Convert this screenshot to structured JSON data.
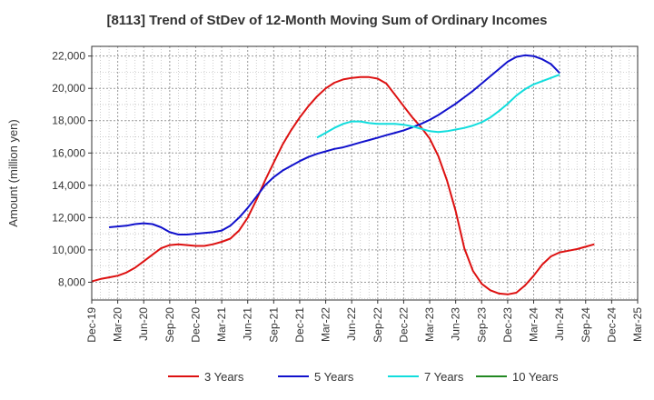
{
  "chart_data": {
    "type": "line",
    "title": "[8113]  Trend of StDev of 12-Month Moving Sum of Ordinary Incomes",
    "xlabel": "",
    "ylabel": "Amount (million yen)",
    "ylim": [
      6900,
      22600
    ],
    "yticks": [
      8000,
      10000,
      12000,
      14000,
      16000,
      18000,
      20000,
      22000
    ],
    "ytick_labels": [
      "8,000",
      "10,000",
      "12,000",
      "14,000",
      "16,000",
      "18,000",
      "20,000",
      "22,000"
    ],
    "x_categories": [
      "Dec-19",
      "Mar-20",
      "Jun-20",
      "Sep-20",
      "Dec-20",
      "Mar-21",
      "Jun-21",
      "Sep-21",
      "Dec-21",
      "Mar-22",
      "Jun-22",
      "Sep-22",
      "Dec-22",
      "Mar-23",
      "Jun-23",
      "Sep-23",
      "Dec-23",
      "Mar-24",
      "Jun-24",
      "Sep-24",
      "Dec-24",
      "Mar-25"
    ],
    "grid": true,
    "legend_position": "bottom",
    "series": [
      {
        "name": "3 Years",
        "color": "#dd1111",
        "start_index": 0,
        "values": [
          8050,
          8200,
          8300,
          8400,
          8600,
          8900,
          9300,
          9700,
          10100,
          10300,
          10350,
          10300,
          10250,
          10250,
          10350,
          10500,
          10700,
          11200,
          12000,
          13100,
          14300,
          15400,
          16500,
          17400,
          18200,
          18900,
          19500,
          20000,
          20350,
          20550,
          20650,
          20700,
          20700,
          20600,
          20300,
          19600,
          18900,
          18200,
          17600,
          16900,
          15800,
          14300,
          12400,
          10100,
          8700,
          7900,
          7500,
          7300,
          7250,
          7350,
          7800,
          8400,
          9100,
          9600,
          9850,
          9950,
          10050,
          10200,
          10350
        ]
      },
      {
        "name": "5 Years",
        "color": "#1111cc",
        "start_index": 2,
        "values": [
          11400,
          11450,
          11500,
          11600,
          11650,
          11600,
          11400,
          11100,
          10950,
          10950,
          11000,
          11050,
          11100,
          11200,
          11500,
          12000,
          12600,
          13300,
          14000,
          14500,
          14900,
          15200,
          15500,
          15750,
          15950,
          16100,
          16250,
          16350,
          16500,
          16650,
          16800,
          16950,
          17100,
          17250,
          17400,
          17600,
          17800,
          18050,
          18350,
          18700,
          19050,
          19450,
          19850,
          20300,
          20750,
          21200,
          21650,
          21950,
          22050,
          22000,
          21800,
          21500,
          20950
        ]
      },
      {
        "name": "7 Years",
        "color": "#11dddd",
        "start_index": 26,
        "values": [
          16950,
          17250,
          17550,
          17800,
          17950,
          17950,
          17850,
          17800,
          17800,
          17800,
          17750,
          17650,
          17500,
          17350,
          17300,
          17350,
          17450,
          17550,
          17700,
          17900,
          18200,
          18600,
          19050,
          19550,
          19950,
          20250,
          20450,
          20650,
          20850
        ]
      },
      {
        "name": "10 Years",
        "color": "#228822",
        "start_index": 0,
        "values": []
      }
    ]
  }
}
